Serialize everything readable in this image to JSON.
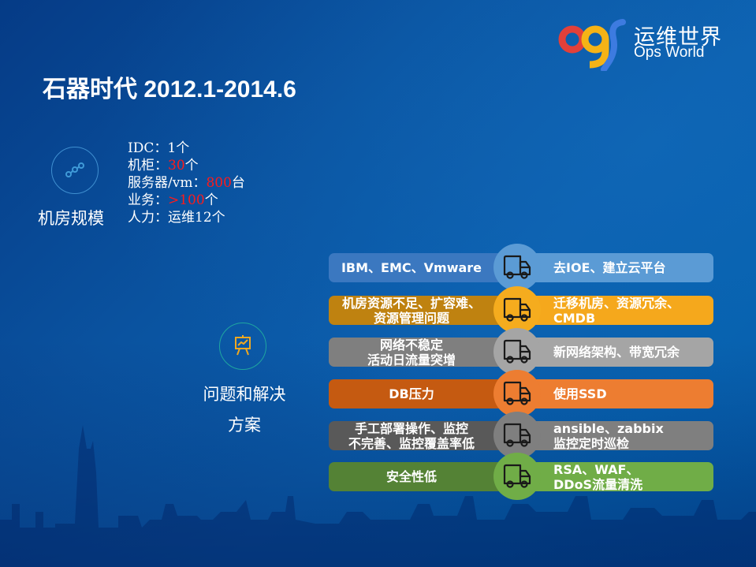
{
  "brand": {
    "logo_mark": "ops",
    "name_cn": "运维世界",
    "name_en": "Ops World",
    "colors": {
      "o": "#e2403a",
      "p": "#f5b316",
      "s": "#3d7be0"
    }
  },
  "title": "石器时代 2012.1-2014.6",
  "scale_section": {
    "icon": "route-nodes-icon",
    "label": "机房规模",
    "stats": [
      {
        "key": "IDC：",
        "value": "1",
        "unit": "个",
        "highlight": false
      },
      {
        "key": "机柜：",
        "value": "30",
        "unit": "个",
        "highlight": true
      },
      {
        "key": "服务器/vm：",
        "value": "800",
        "unit": "台",
        "highlight": true
      },
      {
        "key": "业务：",
        "value": ">100",
        "unit": "个",
        "highlight": true
      },
      {
        "key": "人力：",
        "value": "运维12",
        "unit": "个",
        "highlight": false
      }
    ]
  },
  "problem_section": {
    "icon": "presentation-chart-icon",
    "label_line1": "问题和解决",
    "label_line2": "方案"
  },
  "rows": [
    {
      "problem": "IBM、EMC、Vmware",
      "solution": "去IOE、建立云平台",
      "left_color": "#3b78c0",
      "right_color": "#5b9bd5",
      "hub_color": "#5b9bd5"
    },
    {
      "problem": "机房资源不足、扩容难、\n资源管理问题",
      "solution": "迁移机房、资源冗余、\nCMDB",
      "left_color": "#bf8210",
      "right_color": "#f5a81c",
      "hub_color": "#f5ac1e"
    },
    {
      "problem": "网络不稳定\n活动日流量突增",
      "solution": "新网络架构、带宽冗余",
      "left_color": "#7f7f7f",
      "right_color": "#a5a5a5",
      "hub_color": "#a5a5a5"
    },
    {
      "problem": "DB压力",
      "solution": "使用SSD",
      "left_color": "#c55a11",
      "right_color": "#ed7d31",
      "hub_color": "#ed7d31"
    },
    {
      "problem": "手工部署操作、监控\n不完善、监控覆盖率低",
      "solution": "ansible、zabbix\n监控定时巡检",
      "left_color": "#595959",
      "right_color": "#7f7f7f",
      "hub_color": "#7f7f7f"
    },
    {
      "problem": "安全性低",
      "solution": "RSA、WAF、\nDDoS流量清洗",
      "left_color": "#548235",
      "right_color": "#70ad47",
      "hub_color": "#70ad47"
    }
  ],
  "hub_icon": "truck-icon"
}
